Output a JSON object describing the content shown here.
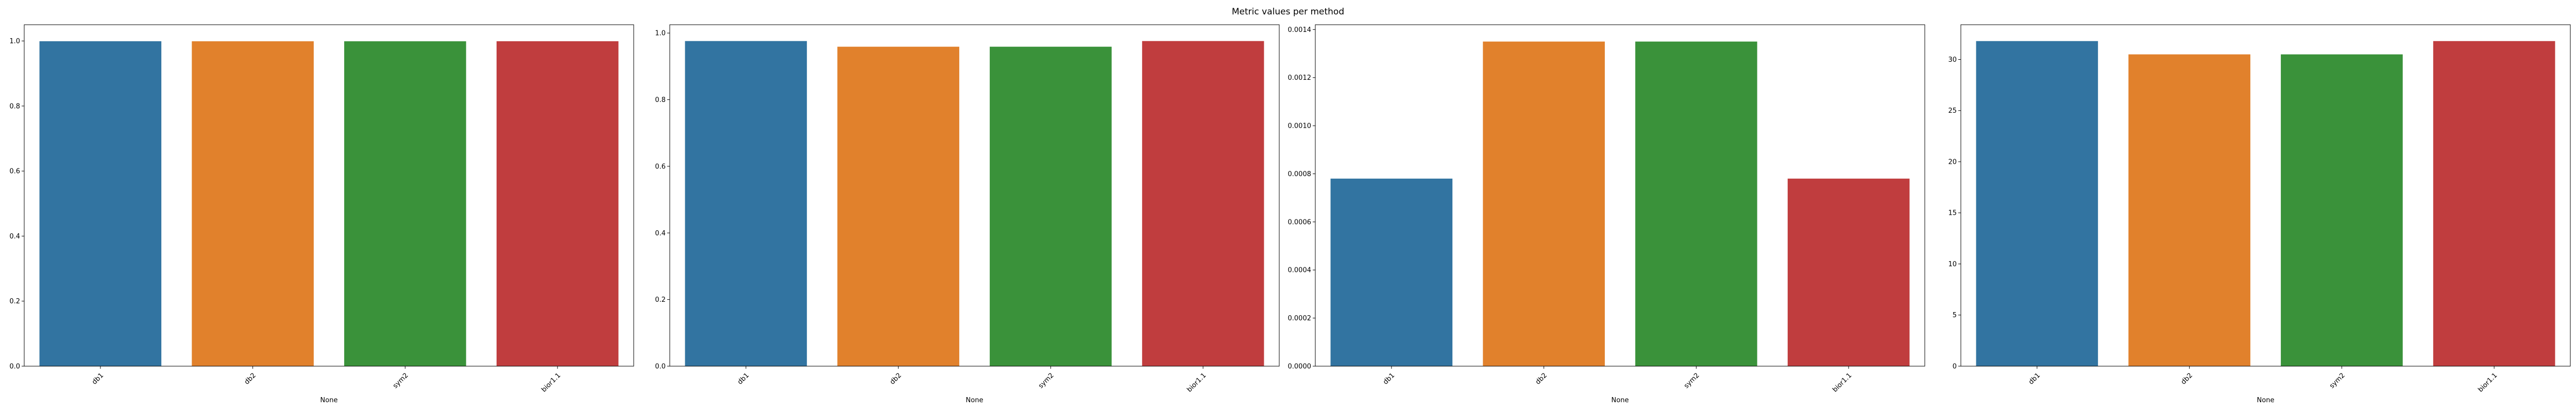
{
  "suptitle": "Metric values per method",
  "chart_data": [
    {
      "type": "bar",
      "categories": [
        "db1",
        "db2",
        "sym2",
        "bior1.1"
      ],
      "values": [
        0.9992,
        0.9991,
        0.9991,
        0.9992
      ],
      "colors": [
        "#3274a1",
        "#e1812c",
        "#3a923a",
        "#c03d3e"
      ],
      "xlabel": "None",
      "ylabel": "",
      "ylim": [
        0,
        1.05
      ],
      "yticks": [
        0.0,
        0.2,
        0.4,
        0.6,
        0.8,
        1.0
      ],
      "ytick_labels": [
        "0.0",
        "0.2",
        "0.4",
        "0.6",
        "0.8",
        "1.0"
      ],
      "grid": false
    },
    {
      "type": "bar",
      "categories": [
        "db1",
        "db2",
        "sym2",
        "bior1.1"
      ],
      "values": [
        0.976,
        0.959,
        0.959,
        0.976
      ],
      "colors": [
        "#3274a1",
        "#e1812c",
        "#3a923a",
        "#c03d3e"
      ],
      "xlabel": "None",
      "ylabel": "",
      "ylim": [
        0,
        1.025
      ],
      "yticks": [
        0.0,
        0.2,
        0.4,
        0.6,
        0.8,
        1.0
      ],
      "ytick_labels": [
        "0.0",
        "0.2",
        "0.4",
        "0.6",
        "0.8",
        "1.0"
      ],
      "grid": false
    },
    {
      "type": "bar",
      "categories": [
        "db1",
        "db2",
        "sym2",
        "bior1.1"
      ],
      "values": [
        0.00078,
        0.00135,
        0.00135,
        0.00078
      ],
      "colors": [
        "#3274a1",
        "#e1812c",
        "#3a923a",
        "#c03d3e"
      ],
      "xlabel": "None",
      "ylabel": "",
      "ylim": [
        0,
        0.00142
      ],
      "yticks": [
        0.0,
        0.0002,
        0.0004,
        0.0006,
        0.0008,
        0.001,
        0.0012,
        0.0014
      ],
      "ytick_labels": [
        "0.0000",
        "0.0002",
        "0.0004",
        "0.0006",
        "0.0008",
        "0.0010",
        "0.0012",
        "0.0014"
      ],
      "grid": false
    },
    {
      "type": "bar",
      "categories": [
        "db1",
        "db2",
        "sym2",
        "bior1.1"
      ],
      "values": [
        31.8,
        30.5,
        30.5,
        31.8
      ],
      "colors": [
        "#3274a1",
        "#e1812c",
        "#3a923a",
        "#c03d3e"
      ],
      "xlabel": "None",
      "ylabel": "",
      "ylim": [
        0,
        33.4
      ],
      "yticks": [
        0,
        5,
        10,
        15,
        20,
        25,
        30
      ],
      "ytick_labels": [
        "0",
        "5",
        "10",
        "15",
        "20",
        "25",
        "30"
      ],
      "grid": false
    }
  ]
}
